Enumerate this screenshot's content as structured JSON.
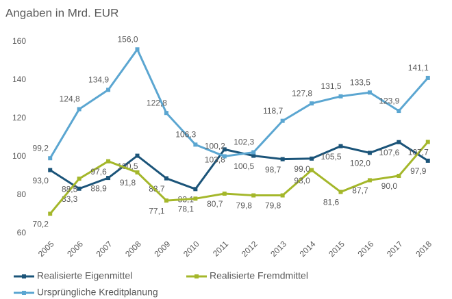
{
  "chart_data": {
    "type": "line",
    "title": "Angaben in Mrd. EUR",
    "categories": [
      "2005",
      "2006",
      "2007",
      "2008",
      "2009",
      "2010",
      "2011",
      "2012",
      "2013",
      "2014",
      "2015",
      "2016",
      "2017",
      "2018"
    ],
    "ylim": [
      60,
      160
    ],
    "yticks": [
      60,
      80,
      100,
      120,
      140,
      160
    ],
    "grid": false,
    "legend": "bottom",
    "series": [
      {
        "name": "Realisierte Eigenmittel",
        "color": "#1b5479",
        "values": [
          93.0,
          83.3,
          88.9,
          100.5,
          88.7,
          83.1,
          103.8,
          100.5,
          98.7,
          99.0,
          105.5,
          102.0,
          107.6,
          97.9
        ],
        "value_labels": [
          "93,0",
          "83,3",
          "88,9",
          "100,5",
          "88,7",
          "83,1",
          "103,8",
          "100,5",
          "98,7",
          "99,0",
          "105,5",
          "102,0",
          "107,6",
          "97,9"
        ]
      },
      {
        "name": "Realisierte Fremdmittel",
        "color": "#a4b72a",
        "values": [
          70.2,
          88.5,
          97.6,
          91.8,
          77.1,
          78.1,
          80.7,
          79.8,
          79.8,
          93.0,
          81.6,
          87.7,
          90.0,
          107.7
        ],
        "value_labels": [
          "70,2",
          "88,5",
          "97,6",
          "91,8",
          "77,1",
          "78,1",
          "80,7",
          "79,8",
          "79,8",
          "93,0",
          "81,6",
          "87,7",
          "90,0",
          "107,7"
        ]
      },
      {
        "name": "Ursprüngliche Kreditplanung",
        "color": "#5ba6d1",
        "values": [
          99.2,
          124.8,
          134.9,
          156.0,
          122.8,
          106.3,
          100.2,
          102.3,
          118.7,
          127.8,
          131.5,
          133.5,
          123.9,
          141.1
        ],
        "value_labels": [
          "99,2",
          "124,8",
          "134,9",
          "156,0",
          "122,8",
          "106,3",
          "100,2",
          "102,3",
          "118,7",
          "127,8",
          "131,5",
          "133,5",
          "123,9",
          "141,1"
        ]
      }
    ]
  }
}
